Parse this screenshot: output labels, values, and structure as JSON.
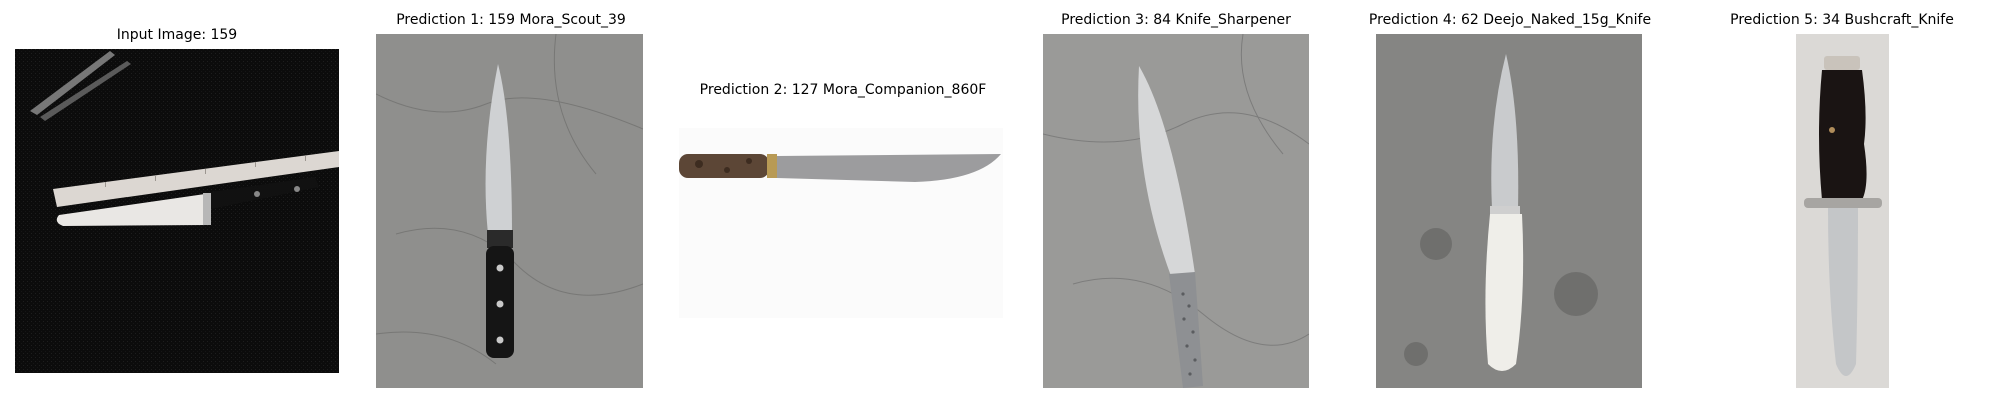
{
  "panels": [
    {
      "title": "Input Image: 159",
      "image": "knife-photo-on-black-fabric-with-measuring-tape"
    },
    {
      "title": "Prediction 1: 159 Mora_Scout_39",
      "image": "chef-knife-black-handle-on-concrete"
    },
    {
      "title": "Prediction 2: 127 Mora_Companion_860F",
      "image": "knife-wood-handle-on-white"
    },
    {
      "title": "Prediction 3: 84 Knife_Sharpener",
      "image": "chef-knife-steel-dotted-handle-on-concrete"
    },
    {
      "title": "Prediction 4: 62 Deejo_Naked_15g_Knife",
      "image": "knife-white-handle-on-concrete"
    },
    {
      "title": "Prediction 5: 34 Bushcraft_Knife",
      "image": "bowie-knife-dark-handle-on-white"
    }
  ]
}
